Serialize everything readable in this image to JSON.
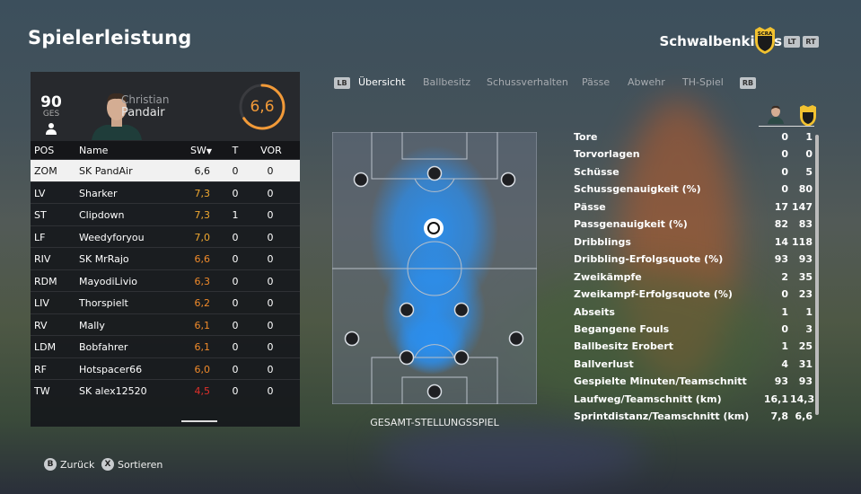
{
  "page": {
    "title": "Spielerleistung",
    "club_name": "Schwalbenkings",
    "club_badge_text": "SCRA"
  },
  "nav": {
    "lt": "LT",
    "rt": "RT",
    "lb": "LB",
    "rb": "RB"
  },
  "player": {
    "overall": "90",
    "overall_label": "GES",
    "first_name": "Christian",
    "last_name": "Pandair",
    "rating": "6,6",
    "rating_fraction": 0.66,
    "rating_color": "#f29a38"
  },
  "table": {
    "headers": {
      "pos": "POS",
      "name": "Name",
      "sw": "SW",
      "t": "T",
      "vor": "VOR"
    },
    "rows": [
      {
        "pos": "ZOM",
        "name": "SK PandAir",
        "sw": "6,6",
        "t": "0",
        "vor": "0",
        "color": "#111111",
        "selected": true
      },
      {
        "pos": "LV",
        "name": "Sharker",
        "sw": "7,3",
        "t": "0",
        "vor": "0",
        "color": "#f0a830"
      },
      {
        "pos": "ST",
        "name": "Clipdown",
        "sw": "7,3",
        "t": "1",
        "vor": "0",
        "color": "#f0a830"
      },
      {
        "pos": "LF",
        "name": "Weedyforyou",
        "sw": "7,0",
        "t": "0",
        "vor": "0",
        "color": "#f0a830"
      },
      {
        "pos": "RIV",
        "name": "SK MrRajo",
        "sw": "6,6",
        "t": "0",
        "vor": "0",
        "color": "#f08a2a"
      },
      {
        "pos": "RDM",
        "name": "MayodiLivio",
        "sw": "6,3",
        "t": "0",
        "vor": "0",
        "color": "#f08a2a"
      },
      {
        "pos": "LIV",
        "name": "Thorspielt",
        "sw": "6,2",
        "t": "0",
        "vor": "0",
        "color": "#f08a2a"
      },
      {
        "pos": "RV",
        "name": "Mally",
        "sw": "6,1",
        "t": "0",
        "vor": "0",
        "color": "#f08a2a"
      },
      {
        "pos": "LDM",
        "name": "Bobfahrer",
        "sw": "6,1",
        "t": "0",
        "vor": "0",
        "color": "#f08a2a"
      },
      {
        "pos": "RF",
        "name": "Hotspacer66",
        "sw": "6,0",
        "t": "0",
        "vor": "0",
        "color": "#f08a2a"
      },
      {
        "pos": "TW",
        "name": "SK alex12520",
        "sw": "4,5",
        "t": "0",
        "vor": "0",
        "color": "#e0302a"
      }
    ]
  },
  "tabs": [
    {
      "label": "Übersicht",
      "active": true
    },
    {
      "label": "Ballbesitz"
    },
    {
      "label": "Schussverhalten"
    },
    {
      "label": "Pässe"
    },
    {
      "label": "Abwehr"
    },
    {
      "label": "TH-Spiel"
    }
  ],
  "pitch": {
    "caption": "GESAMT-STELLUNGSSPIEL",
    "heat_color": "#2a8ff0"
  },
  "stats": [
    {
      "label": "Tore",
      "a": "0",
      "b": "1"
    },
    {
      "label": "Torvorlagen",
      "a": "0",
      "b": "0"
    },
    {
      "label": "Schüsse",
      "a": "0",
      "b": "5"
    },
    {
      "label": "Schussgenauigkeit (%)",
      "a": "0",
      "b": "80"
    },
    {
      "label": "Pässe",
      "a": "17",
      "b": "147"
    },
    {
      "label": "Passgenauigkeit (%)",
      "a": "82",
      "b": "83"
    },
    {
      "label": "Dribblings",
      "a": "14",
      "b": "118"
    },
    {
      "label": "Dribbling-Erfolgsquote (%)",
      "a": "93",
      "b": "93"
    },
    {
      "label": "Zweikämpfe",
      "a": "2",
      "b": "35"
    },
    {
      "label": "Zweikampf-Erfolgsquote (%)",
      "a": "0",
      "b": "23"
    },
    {
      "label": "Abseits",
      "a": "1",
      "b": "1"
    },
    {
      "label": "Begangene Fouls",
      "a": "0",
      "b": "3"
    },
    {
      "label": "Ballbesitz Erobert",
      "a": "1",
      "b": "25"
    },
    {
      "label": "Ballverlust",
      "a": "4",
      "b": "31"
    },
    {
      "label": "Gespielte Minuten/Teamschnitt",
      "a": "93",
      "b": "93"
    },
    {
      "label": "Laufweg/Teamschnitt (km)",
      "a": "16,1",
      "b": "14,3"
    },
    {
      "label": "Sprintdistanz/Teamschnitt (km)",
      "a": "7,8",
      "b": "6,6"
    }
  ],
  "footer": {
    "back_key": "B",
    "back_label": "Zurück",
    "sort_key": "X",
    "sort_label": "Sortieren"
  }
}
